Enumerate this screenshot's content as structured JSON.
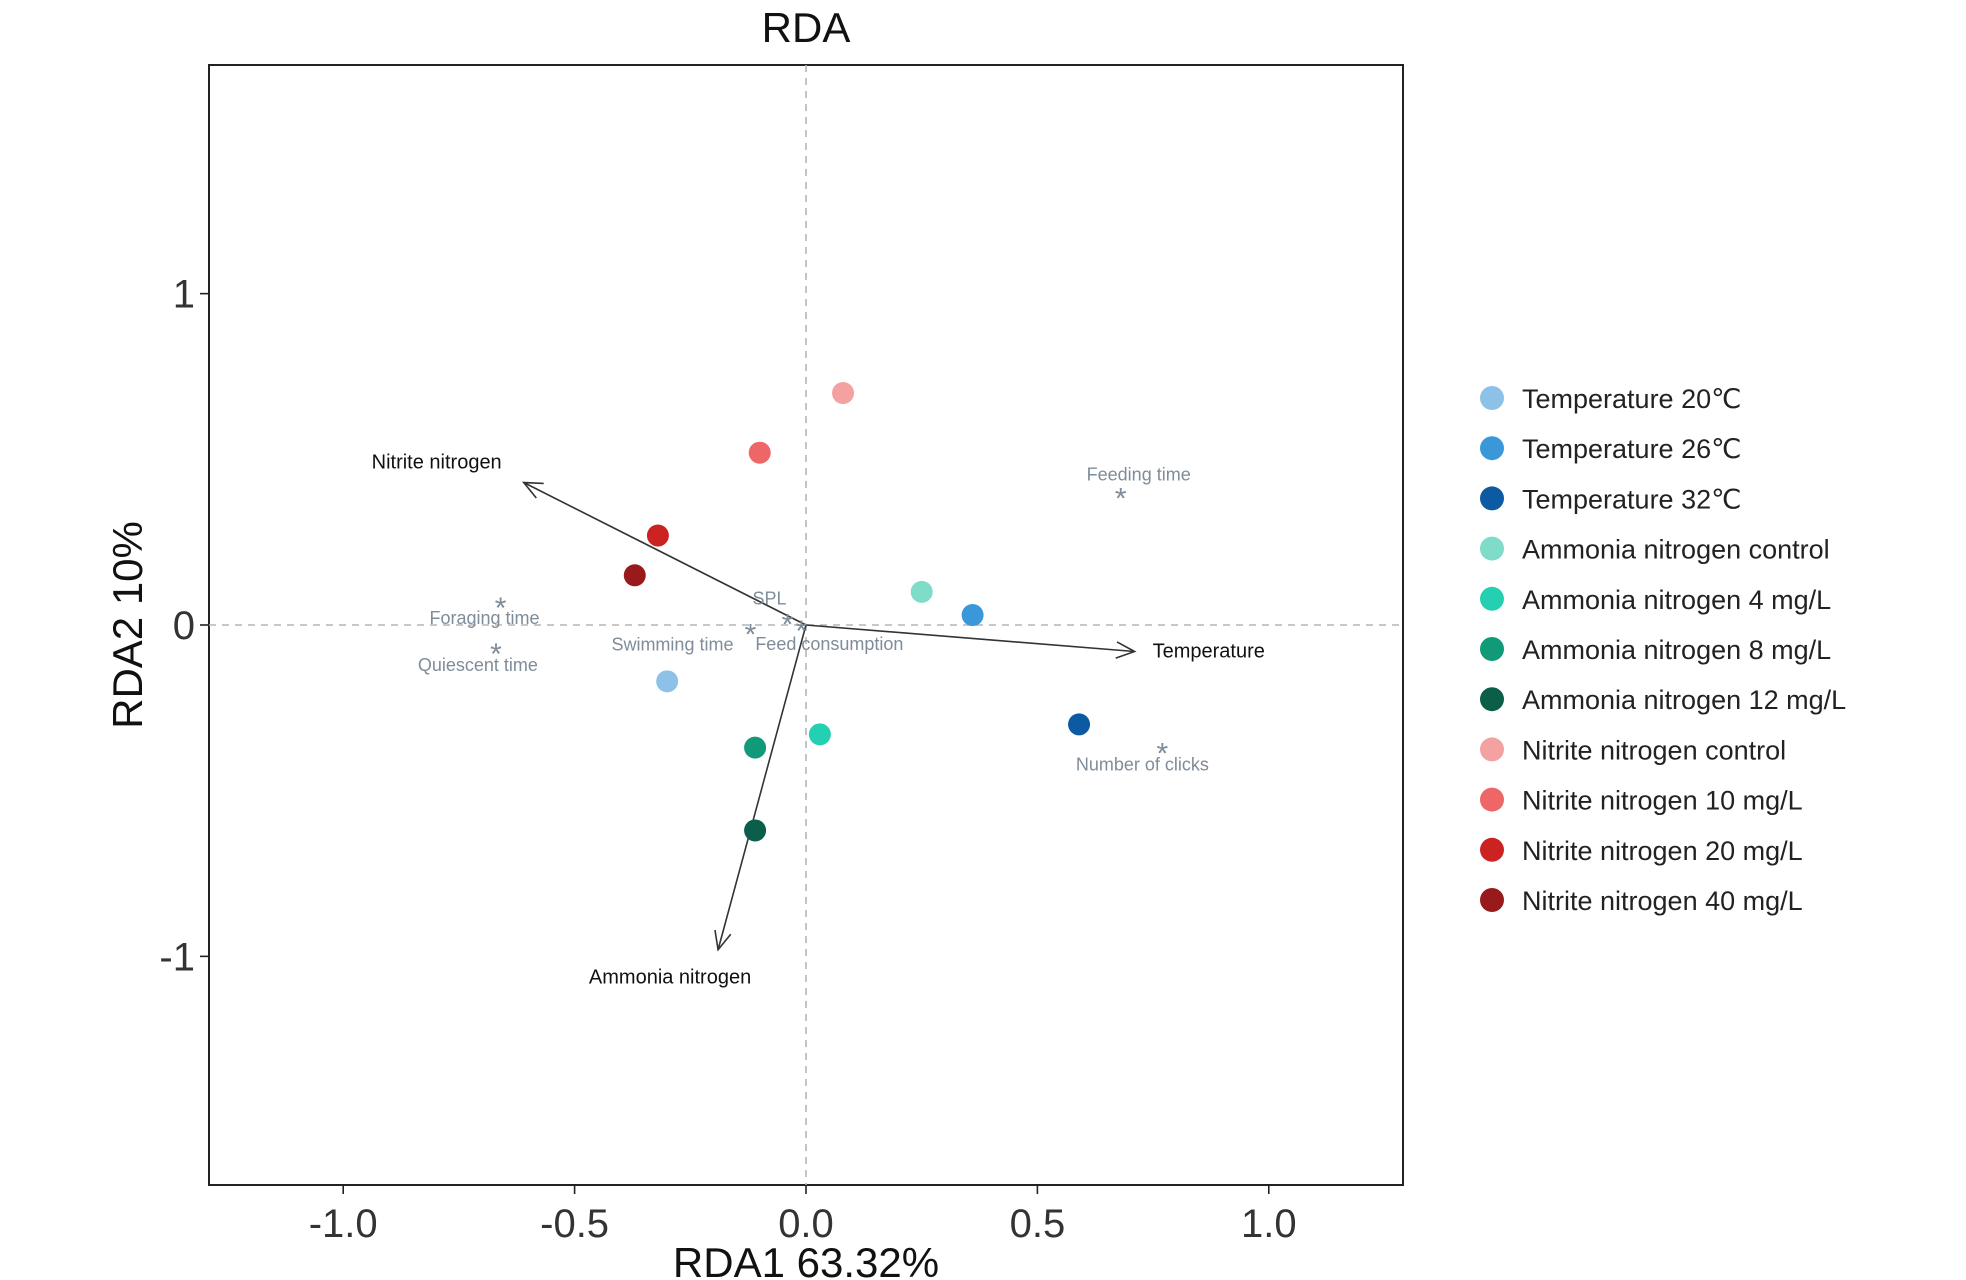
{
  "chart_data": {
    "type": "scatter",
    "title": "RDA",
    "xlabel": "RDA1 63.32%",
    "ylabel": "RDA2 10%",
    "xlim": [
      -1.29,
      1.29
    ],
    "ylim": [
      -1.69,
      1.69
    ],
    "xticks": [
      -1.0,
      -0.5,
      0.0,
      0.5,
      1.0
    ],
    "xtick_labels": [
      "-1.0",
      "-0.5",
      "0.0",
      "0.5",
      "1.0"
    ],
    "yticks": [
      1,
      0,
      -1
    ],
    "ytick_labels": [
      "1",
      "0",
      "-1"
    ],
    "grid": false,
    "reference_lines": [
      0,
      0
    ],
    "legend_position": "right",
    "points": [
      {
        "group": "Temperature 20℃",
        "x": -0.3,
        "y": -0.17,
        "color": "#8ec1e8"
      },
      {
        "group": "Temperature 26℃",
        "x": 0.36,
        "y": 0.03,
        "color": "#3a98da"
      },
      {
        "group": "Temperature 32℃",
        "x": 0.59,
        "y": -0.3,
        "color": "#0b5aa2"
      },
      {
        "group": "Ammonia nitrogen control",
        "x": 0.25,
        "y": 0.1,
        "color": "#7fdcc8"
      },
      {
        "group": "Ammonia nitrogen 4  mg/L",
        "x": 0.03,
        "y": -0.33,
        "color": "#25d0b2"
      },
      {
        "group": "Ammonia nitrogen 8  mg/L",
        "x": -0.11,
        "y": -0.37,
        "color": "#119a78"
      },
      {
        "group": "Ammonia nitrogen 12  mg/L",
        "x": -0.11,
        "y": -0.62,
        "color": "#0b5e49"
      },
      {
        "group": "Nitrite nitrogen control",
        "x": 0.08,
        "y": 0.7,
        "color": "#f3a1a1"
      },
      {
        "group": "Nitrite nitrogen 10 mg/L",
        "x": -0.1,
        "y": 0.52,
        "color": "#ee6666"
      },
      {
        "group": "Nitrite nitrogen 20 mg/L",
        "x": -0.32,
        "y": 0.27,
        "color": "#cc2222"
      },
      {
        "group": "Nitrite nitrogen 40 mg/L",
        "x": -0.37,
        "y": 0.15,
        "color": "#991a1a"
      }
    ],
    "arrows": [
      {
        "label": "Nitrite nitrogen",
        "x": -0.61,
        "y": 0.43
      },
      {
        "label": "Temperature",
        "x": 0.71,
        "y": -0.08
      },
      {
        "label": "Ammonia nitrogen",
        "x": -0.19,
        "y": -0.98
      }
    ],
    "variables": [
      {
        "label": "Feeding  time",
        "x": 0.68,
        "y": 0.4
      },
      {
        "label": "Foraging  time",
        "x": -0.66,
        "y": 0.07
      },
      {
        "label": "Quiescent  time",
        "x": -0.67,
        "y": -0.07
      },
      {
        "label": "Swimming  time",
        "x": -0.12,
        "y": -0.01
      },
      {
        "label": "SPL",
        "x": -0.04,
        "y": 0.02
      },
      {
        "label": "Feed  consumption",
        "x": -0.01,
        "y": 0.0
      },
      {
        "label": "Number  of  clicks",
        "x": 0.77,
        "y": -0.37
      }
    ],
    "legend": [
      {
        "label": "Temperature 20℃",
        "color": "#8ec1e8"
      },
      {
        "label": "Temperature 26℃",
        "color": "#3a98da"
      },
      {
        "label": "Temperature 32℃",
        "color": "#0b5aa2"
      },
      {
        "label": "Ammonia nitrogen control",
        "color": "#7fdcc8"
      },
      {
        "label": "Ammonia nitrogen 4  mg/L",
        "color": "#25d0b2"
      },
      {
        "label": "Ammonia nitrogen 8  mg/L",
        "color": "#119a78"
      },
      {
        "label": "Ammonia nitrogen 12  mg/L",
        "color": "#0b5e49"
      },
      {
        "label": "Nitrite nitrogen control",
        "color": "#f3a1a1"
      },
      {
        "label": "Nitrite nitrogen 10 mg/L",
        "color": "#ee6666"
      },
      {
        "label": "Nitrite nitrogen 20 mg/L",
        "color": "#cc2222"
      },
      {
        "label": "Nitrite nitrogen 40 mg/L",
        "color": "#991a1a"
      }
    ]
  }
}
